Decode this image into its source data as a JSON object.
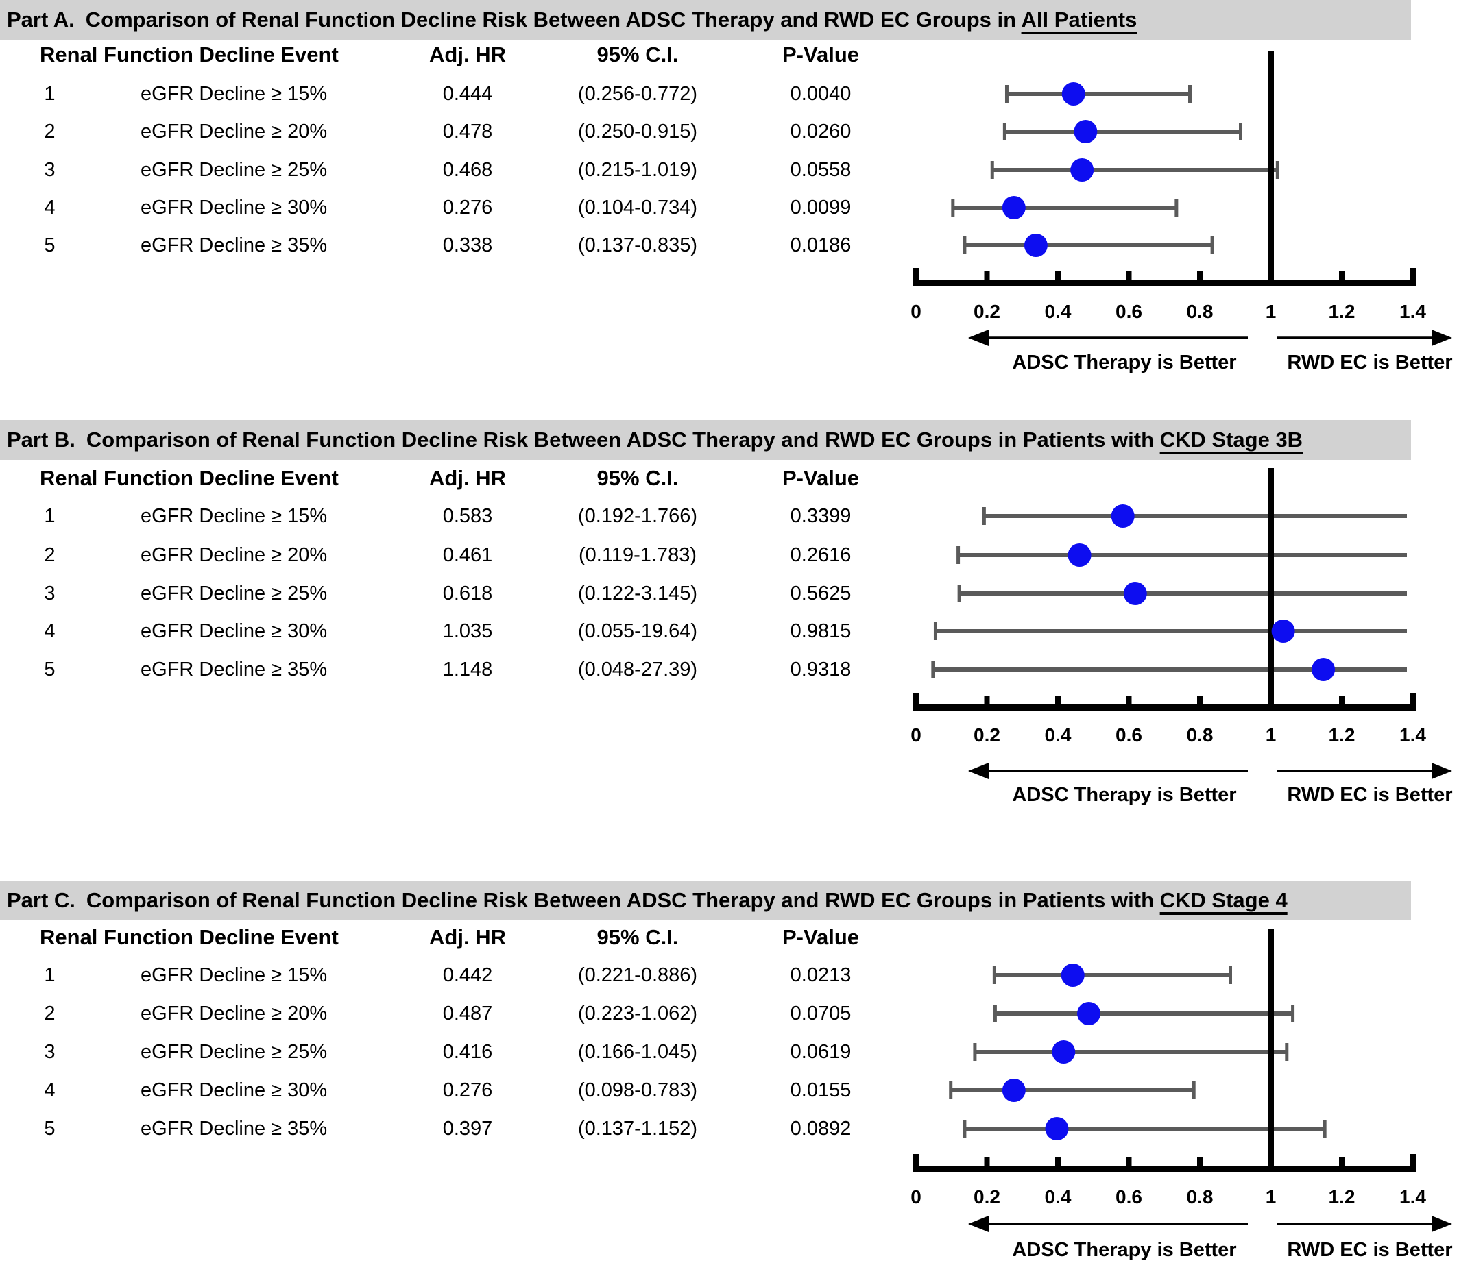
{
  "columns": {
    "event": "Renal Function Decline Event",
    "hr": "Adj. HR",
    "ci": "95% C.I.",
    "p": "P-Value"
  },
  "colors": {
    "dot": "#0d0df0",
    "whisker": "#5a5a5a",
    "title_bar": "#d2d2d2",
    "axis": "#000000"
  },
  "chart_data": [
    {
      "type": "forest",
      "part": "Part A.",
      "title": "Comparison of Renal Function Decline Risk Between ADSC Therapy and RWD EC Groups in ",
      "title_underlined": "All Patients",
      "xlim": [
        0,
        1.4
      ],
      "xticks": [
        "0",
        "0.2",
        "0.4",
        "0.6",
        "0.8",
        "1",
        "1.2",
        "1.4"
      ],
      "ref_line": 1,
      "left_arrow_label": "ADSC Therapy  is Better",
      "right_arrow_label": "RWD EC is Better",
      "rows": [
        {
          "n": "1",
          "event": "eGFR Decline ≥ 15%",
          "hr": "0.444",
          "low": 0.256,
          "high": 0.772,
          "ci": "(0.256-0.772)",
          "p": "0.0040"
        },
        {
          "n": "2",
          "event": "eGFR Decline ≥ 20%",
          "hr": "0.478",
          "low": 0.25,
          "high": 0.915,
          "ci": "(0.250-0.915)",
          "p": "0.0260"
        },
        {
          "n": "3",
          "event": "eGFR Decline ≥ 25%",
          "hr": "0.468",
          "low": 0.215,
          "high": 1.019,
          "ci": "(0.215-1.019)",
          "p": "0.0558"
        },
        {
          "n": "4",
          "event": "eGFR Decline ≥ 30%",
          "hr": "0.276",
          "low": 0.104,
          "high": 0.734,
          "ci": "(0.104-0.734)",
          "p": "0.0099"
        },
        {
          "n": "5",
          "event": "eGFR Decline ≥ 35%",
          "hr": "0.338",
          "low": 0.137,
          "high": 0.835,
          "ci": "(0.137-0.835)",
          "p": "0.0186"
        }
      ]
    },
    {
      "type": "forest",
      "part": "Part B.",
      "title": "Comparison of Renal Function Decline Risk Between ADSC Therapy and RWD EC Groups in Patients with ",
      "title_underlined": "CKD Stage 3B",
      "xlim": [
        0,
        1.4
      ],
      "xticks": [
        "0",
        "0.2",
        "0.4",
        "0.6",
        "0.8",
        "1",
        "1.2",
        "1.4"
      ],
      "ref_line": 1,
      "left_arrow_label": "ADSC Therapy is Better",
      "right_arrow_label": "RWD EC is Better",
      "rows": [
        {
          "n": "1",
          "event": "eGFR Decline ≥ 15%",
          "hr": "0.583",
          "low": 0.192,
          "high": 1.766,
          "ci": "(0.192-1.766)",
          "p": "0.3399"
        },
        {
          "n": "2",
          "event": "eGFR Decline ≥ 20%",
          "hr": "0.461",
          "low": 0.119,
          "high": 1.783,
          "ci": "(0.119-1.783)",
          "p": "0.2616"
        },
        {
          "n": "3",
          "event": "eGFR Decline ≥ 25%",
          "hr": "0.618",
          "low": 0.122,
          "high": 3.145,
          "ci": "(0.122-3.145)",
          "p": "0.5625"
        },
        {
          "n": "4",
          "event": "eGFR Decline ≥ 30%",
          "hr": "1.035",
          "low": 0.055,
          "high": 19.64,
          "ci": "(0.055-19.64)",
          "p": "0.9815"
        },
        {
          "n": "5",
          "event": "eGFR Decline ≥ 35%",
          "hr": "1.148",
          "low": 0.048,
          "high": 27.39,
          "ci": "(0.048-27.39)",
          "p": "0.9318"
        }
      ]
    },
    {
      "type": "forest",
      "part": "Part C.",
      "title": "Comparison of Renal Function Decline Risk Between ADSC Therapy and RWD EC Groups in Patients with ",
      "title_underlined": "CKD Stage 4",
      "xlim": [
        0,
        1.4
      ],
      "xticks": [
        "0",
        "0.2",
        "0.4",
        "0.6",
        "0.8",
        "1",
        "1.2",
        "1.4"
      ],
      "ref_line": 1,
      "left_arrow_label": "ADSC Therapy is Better",
      "right_arrow_label": "RWD EC is Better",
      "rows": [
        {
          "n": "1",
          "event": "eGFR Decline ≥ 15%",
          "hr": "0.442",
          "low": 0.221,
          "high": 0.886,
          "ci": "(0.221-0.886)",
          "p": "0.0213"
        },
        {
          "n": "2",
          "event": "eGFR Decline ≥ 20%",
          "hr": "0.487",
          "low": 0.223,
          "high": 1.062,
          "ci": "(0.223-1.062)",
          "p": "0.0705"
        },
        {
          "n": "3",
          "event": "eGFR Decline ≥ 25%",
          "hr": "0.416",
          "low": 0.166,
          "high": 1.045,
          "ci": "(0.166-1.045)",
          "p": "0.0619"
        },
        {
          "n": "4",
          "event": "eGFR Decline ≥ 30%",
          "hr": "0.276",
          "low": 0.098,
          "high": 0.783,
          "ci": "(0.098-0.783)",
          "p": "0.0155"
        },
        {
          "n": "5",
          "event": "eGFR Decline ≥ 35%",
          "hr": "0.397",
          "low": 0.137,
          "high": 1.152,
          "ci": "(0.137-1.152)",
          "p": "0.0892"
        }
      ]
    }
  ]
}
